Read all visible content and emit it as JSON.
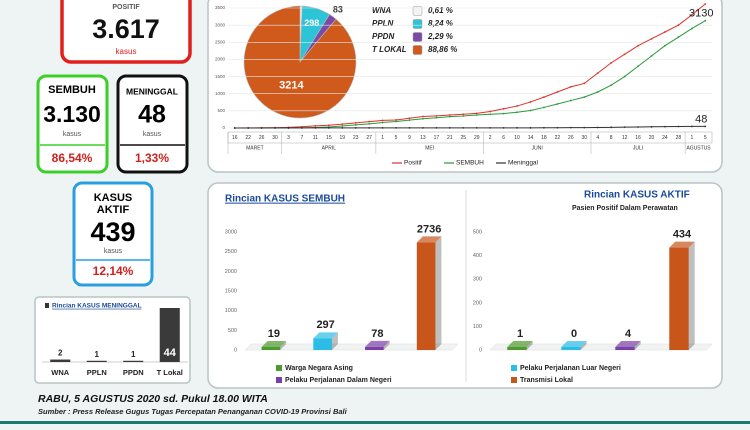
{
  "stats": {
    "positif": {
      "label": "POSITIF",
      "value": "3.617",
      "unit": "kasus"
    },
    "sembuh": {
      "label": "SEMBUH",
      "value": "3.130",
      "unit": "kasus",
      "percent": "86,54%"
    },
    "meninggal": {
      "label": "MENINGGAL",
      "value": "48",
      "unit": "kasus",
      "percent": "1,33%"
    },
    "aktif": {
      "label_lines": [
        "KASUS",
        "AKTIF"
      ],
      "value": "439",
      "unit": "kasus",
      "percent": "12,14%"
    }
  },
  "chart_data": [
    {
      "type": "pie",
      "categories": [
        "WNA",
        "PPLN",
        "PPDN",
        "T LOKAL"
      ],
      "values": [
        22,
        298,
        83,
        3214
      ],
      "colors": [
        "#f4f4f4",
        "#2ec4d8",
        "#7a4aa6",
        "#cf5a1c"
      ],
      "legend_labels": [
        "0,61 %",
        "8,24 %",
        "2,29 %",
        "88,86 %"
      ]
    },
    {
      "type": "line",
      "categories": [
        "16",
        "22",
        "26",
        "30",
        "3",
        "7",
        "11",
        "15",
        "19",
        "23",
        "27",
        "1",
        "5",
        "9",
        "13",
        "17",
        "21",
        "25",
        "29",
        "2",
        "6",
        "10",
        "14",
        "18",
        "22",
        "26",
        "30",
        "4",
        "8",
        "12",
        "16",
        "20",
        "24",
        "28",
        "1",
        "5"
      ],
      "months": [
        "MARET",
        "APRIL",
        "MEI",
        "JUNI",
        "JULI",
        "AGUSTUS"
      ],
      "series": [
        {
          "name": "Positif",
          "color": "#e0302a",
          "values": [
            1,
            2,
            6,
            9,
            19,
            35,
            63,
            81,
            113,
            150,
            186,
            222,
            235,
            283,
            336,
            354,
            380,
            402,
            427,
            480,
            560,
            640,
            760,
            900,
            1050,
            1200,
            1300,
            1600,
            1900,
            2150,
            2400,
            2600,
            2800,
            3000,
            3300,
            3617
          ]
        },
        {
          "name": "SEMBUH",
          "color": "#2a9a3a",
          "values": [
            0,
            0,
            0,
            0,
            0,
            5,
            15,
            30,
            60,
            90,
            120,
            160,
            190,
            230,
            270,
            300,
            330,
            350,
            380,
            400,
            420,
            460,
            510,
            600,
            700,
            800,
            900,
            1050,
            1250,
            1500,
            1800,
            2100,
            2400,
            2650,
            2900,
            3130
          ]
        },
        {
          "name": "Meninggal",
          "color": "#333333",
          "values": [
            0,
            0,
            0,
            2,
            2,
            2,
            2,
            2,
            2,
            2,
            2,
            3,
            3,
            4,
            4,
            4,
            4,
            4,
            4,
            4,
            4,
            5,
            5,
            6,
            8,
            10,
            12,
            15,
            20,
            25,
            30,
            35,
            40,
            44,
            46,
            48
          ]
        }
      ],
      "ylim": [
        0,
        3500
      ],
      "yticks": [
        0,
        500,
        1000,
        1500,
        2000,
        2500,
        3000,
        3500
      ]
    },
    {
      "type": "bar3d",
      "title": "Rincian KASUS SEMBUH",
      "categories": [
        "Warga Negara Asing",
        "Pelaku Perjalanan Luar Negeri",
        "Pelaku Perjalanan Dalam Negeri",
        "Transmisi Lokal"
      ],
      "values": [
        19,
        297,
        78,
        2736
      ],
      "colors": [
        "#4f9a2e",
        "#2bbde6",
        "#7a3fa8",
        "#c8561a"
      ],
      "ylim": [
        0,
        3000
      ],
      "yticks": [
        0,
        500,
        1000,
        1500,
        2000,
        2500,
        3000
      ]
    },
    {
      "type": "bar3d",
      "title": "Rincian KASUS AKTIF",
      "subtitle": "Pasien Positif Dalam Perawatan",
      "values": [
        1,
        0,
        4,
        434
      ],
      "colors": [
        "#4f9a2e",
        "#2bbde6",
        "#7a3fa8",
        "#c8561a"
      ],
      "ylim": [
        0,
        500
      ],
      "yticks": [
        0,
        100,
        200,
        300,
        400,
        500
      ]
    },
    {
      "type": "bar",
      "title": "Rincian KASUS MENINGGAL",
      "categories": [
        "WNA",
        "PPLN",
        "PPDN",
        "T Lokal"
      ],
      "values": [
        2,
        1,
        1,
        44
      ],
      "color": "#3a3a3a"
    }
  ],
  "footer": {
    "date": "RABU, 5 AGUSTUS 2020 sd. Pukul 18.00 WITA",
    "source": "Sumber :  Press Release Gugus Tugas Percepatan Penanganan COVID-19 Provinsi Bali"
  }
}
